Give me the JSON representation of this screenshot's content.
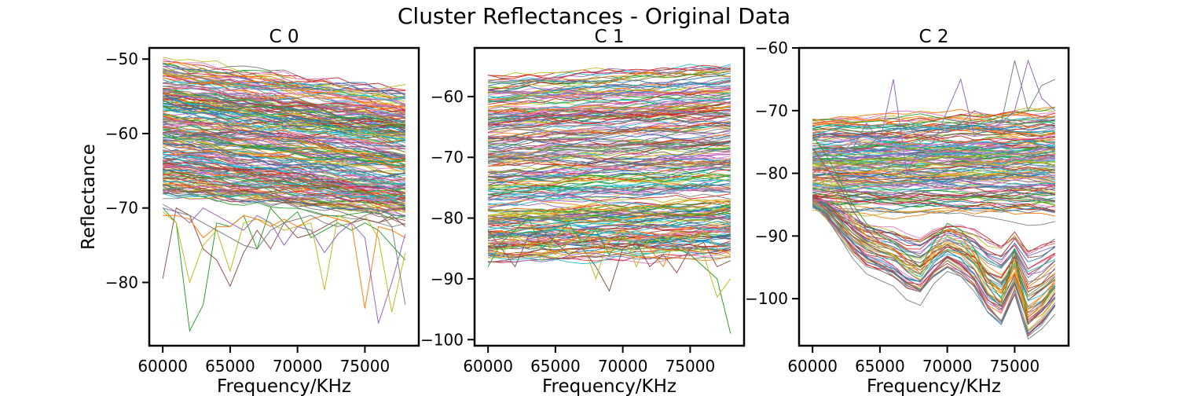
{
  "figure": {
    "title": "Cluster Reflectances - Original Data"
  },
  "chart_data": [
    {
      "type": "line",
      "title": "C 0",
      "xlabel": "Frequency/KHz",
      "ylabel": "Reflectance",
      "xlim": [
        59000,
        79000
      ],
      "ylim": [
        -88.5,
        -48.5
      ],
      "xticks": [
        60000,
        65000,
        70000,
        75000
      ],
      "yticks": [
        -50,
        -60,
        -70,
        -80
      ],
      "x": [
        60000,
        61000,
        62000,
        63000,
        64000,
        65000,
        66000,
        67000,
        68000,
        69000,
        70000,
        71000,
        72000,
        73000,
        74000,
        75000,
        76000,
        77000,
        78000
      ],
      "band": {
        "top_start": -50.5,
        "top_end": -54.5,
        "bottom_start": -68,
        "bottom_end": -71,
        "line_count": 260
      },
      "series": [
        {
          "values": [
            -70,
            -72,
            -86.5,
            -83,
            -72,
            -72.5,
            -71,
            -75.5,
            -70,
            -72,
            -70.5,
            -74,
            -73,
            -72,
            -73,
            -72,
            -73,
            -75,
            -77
          ]
        },
        {
          "values": [
            -79.5,
            -70,
            -71,
            -75.5,
            -77,
            -80.5,
            -76,
            -73,
            -75.5,
            -72,
            -74,
            -73.5,
            -72.5,
            -71.5,
            -72,
            -71.5,
            -72,
            -71,
            -72.5
          ]
        },
        {
          "values": [
            -70.5,
            -72,
            -80,
            -75,
            -73,
            -78.5,
            -72,
            -71.5,
            -72,
            -73,
            -72.5,
            -72,
            -81,
            -71,
            -72,
            -71,
            -74,
            -84,
            -76
          ]
        },
        {
          "values": [
            -71,
            -71,
            -71.5,
            -74,
            -72.5,
            -72.5,
            -71,
            -71.5,
            -72.5,
            -71.5,
            -72.5,
            -71.5,
            -71,
            -71.5,
            -72,
            -83.5,
            -72.5,
            -73,
            -74
          ]
        },
        {
          "values": [
            -70,
            -70.5,
            -72,
            -70,
            -71,
            -72,
            -73,
            -71,
            -72,
            -75,
            -72.5,
            -73,
            -76,
            -73.5,
            -72,
            -74,
            -85.5,
            -80,
            -73.5
          ]
        },
        {
          "values": [
            -69.5,
            -70.5,
            -71,
            -72,
            -73,
            -74,
            -75,
            -75.5,
            -73,
            -72,
            -71.5,
            -71,
            -72,
            -72.5,
            -72,
            -71,
            -70.5,
            -72.5,
            -83
          ]
        }
      ]
    },
    {
      "type": "line",
      "title": "C 1",
      "xlabel": "Frequency/KHz",
      "ylabel": "",
      "xlim": [
        59000,
        79000
      ],
      "ylim": [
        -101,
        -52
      ],
      "xticks": [
        60000,
        65000,
        70000,
        75000
      ],
      "yticks": [
        -60,
        -70,
        -80,
        -90,
        -100
      ],
      "x": [
        60000,
        61000,
        62000,
        63000,
        64000,
        65000,
        66000,
        67000,
        68000,
        69000,
        70000,
        71000,
        72000,
        73000,
        74000,
        75000,
        76000,
        77000,
        78000
      ],
      "band": {
        "top_start": -57,
        "top_end": -55,
        "bottom_start": -87,
        "bottom_end": -86,
        "line_count": 260
      },
      "series": [
        {
          "values": [
            -88,
            -84,
            -82,
            -80,
            -85,
            -83,
            -81,
            -84,
            -82,
            -86,
            -83,
            -85,
            -84,
            -83,
            -85,
            -86,
            -88,
            -90,
            -99
          ]
        },
        {
          "values": [
            -82,
            -85,
            -88,
            -83,
            -82,
            -84,
            -86,
            -85,
            -88,
            -92,
            -85,
            -84,
            -88,
            -86,
            -89,
            -85,
            -84,
            -88,
            -87
          ]
        },
        {
          "values": [
            -84,
            -86,
            -83,
            -84,
            -87,
            -83,
            -82,
            -84,
            -90,
            -83,
            -82,
            -88,
            -83,
            -84,
            -82,
            -83,
            -86,
            -93,
            -90
          ]
        },
        {
          "values": [
            -83,
            -82,
            -84,
            -85,
            -83,
            -86,
            -84,
            -82,
            -85,
            -84,
            -82,
            -83,
            -85,
            -88,
            -83,
            -84,
            -82,
            -85,
            -86
          ]
        }
      ]
    },
    {
      "type": "line",
      "title": "C 2",
      "xlabel": "Frequency/KHz",
      "ylabel": "",
      "xlim": [
        59000,
        79000
      ],
      "ylim": [
        -107.5,
        -60
      ],
      "xticks": [
        60000,
        65000,
        70000,
        75000
      ],
      "yticks": [
        -60,
        -70,
        -80,
        -90,
        -100
      ],
      "x": [
        60000,
        61000,
        62000,
        63000,
        64000,
        65000,
        66000,
        67000,
        68000,
        69000,
        70000,
        71000,
        72000,
        73000,
        74000,
        75000,
        76000,
        77000,
        78000
      ],
      "band": {
        "top_start": -71,
        "top_end": -70,
        "bottom_start": -91,
        "bottom_end": -92,
        "line_count": 200
      },
      "series": [
        {
          "values": [
            -74,
            -77,
            -81,
            -85,
            -88,
            -90,
            -91,
            -93,
            -95,
            -91,
            -88,
            -89,
            -92,
            -97,
            -100,
            -92,
            -103,
            -101,
            -98
          ]
        },
        {
          "values": [
            -76,
            -79,
            -82,
            -86,
            -89,
            -91,
            -92,
            -94,
            -96,
            -92,
            -89,
            -90,
            -93,
            -98,
            -101,
            -93,
            -104,
            -102,
            -99
          ]
        },
        {
          "values": [
            -78,
            -80,
            -84,
            -87,
            -90,
            -92,
            -93,
            -95,
            -97,
            -93,
            -90,
            -91,
            -94,
            -99,
            -101,
            -94,
            -105,
            -103,
            -100
          ]
        },
        {
          "values": [
            -80,
            -82,
            -85,
            -88,
            -90,
            -91,
            -92,
            -94,
            -96,
            -92,
            -89,
            -90,
            -93,
            -97,
            -99,
            -95,
            -103,
            -101,
            -97
          ]
        },
        {
          "values": [
            -78,
            -77,
            -76,
            -76,
            -72,
            -75,
            -65,
            -80,
            -76,
            -75,
            -70,
            -65,
            -74,
            -73,
            -72,
            -70,
            -62,
            -68,
            -70
          ]
        },
        {
          "values": [
            -80,
            -78,
            -77,
            -75,
            -76,
            -74,
            -73,
            -72,
            -75,
            -74,
            -73,
            -72,
            -70,
            -71,
            -72,
            -62,
            -70,
            -66,
            -65
          ]
        }
      ]
    }
  ]
}
